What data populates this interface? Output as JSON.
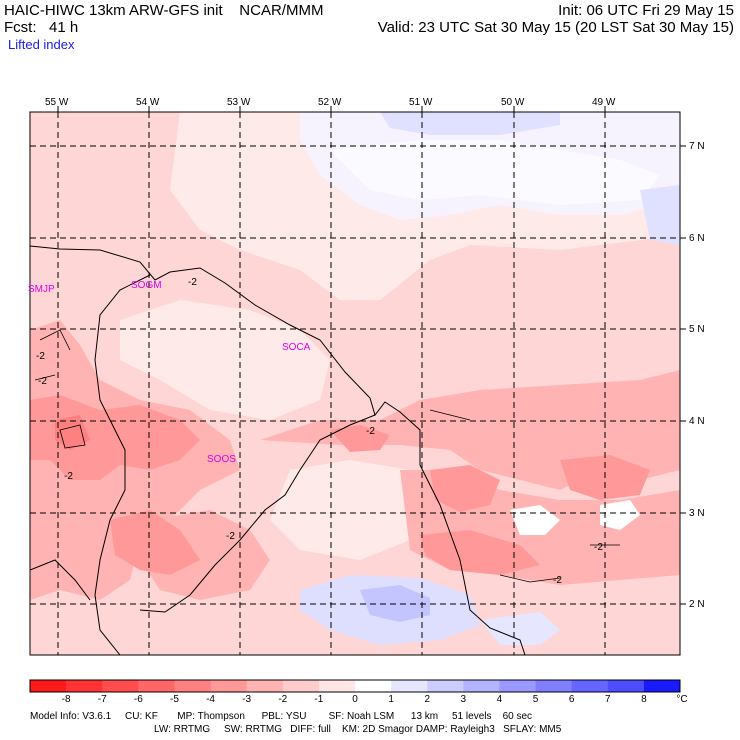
{
  "header": {
    "title": "HAIC-HIWC 13km ARW-GFS init    NCAR/MMM",
    "init": "Init: 06 UTC Fri 29 May 15",
    "fcst": "Fcst:   41 h",
    "valid": "Valid: 23 UTC Sat 30 May 15 (20 LST Sat 30 May 15)",
    "field": "Lifted index"
  },
  "map": {
    "lon_labels": [
      "55 W",
      "54 W",
      "53 W",
      "52 W",
      "51 W",
      "50 W",
      "49 W"
    ],
    "lat_labels": [
      "7 N",
      "6 N",
      "5 N",
      "4 N",
      "3 N",
      "2 N"
    ],
    "stations": [
      "SMJP",
      "SOGM",
      "SOCA",
      "SOOS"
    ],
    "contour_label": "-2"
  },
  "colorbar": {
    "unit": "°C",
    "ticks": [
      "-8",
      "-7",
      "-6",
      "-5",
      "-4",
      "-3",
      "-2",
      "-1",
      "0",
      "1",
      "2",
      "3",
      "4",
      "5",
      "6",
      "7",
      "8"
    ],
    "colors": [
      "#ff1a1a",
      "#ff3333",
      "#ff4d4d",
      "#ff6666",
      "#ff8080",
      "#ff9999",
      "#ffb3b3",
      "#ffcccc",
      "#ffe6e6",
      "#ffffff",
      "#e6e6ff",
      "#ccccff",
      "#b3b3ff",
      "#9999ff",
      "#8080ff",
      "#6666ff",
      "#4d4dff",
      "#1a1aff"
    ]
  },
  "info": {
    "line1": "Model Info: V3.6.1     CU: KF       MP: Thompson      PBL: YSU        SF: Noah LSM      13 km     51 levels    60 sec",
    "line2": "LW: RRTMG     SW: RRTMG   DIFF: full    KM: 2D Smagor DAMP: Rayleigh3   SFLAY: MM5"
  }
}
